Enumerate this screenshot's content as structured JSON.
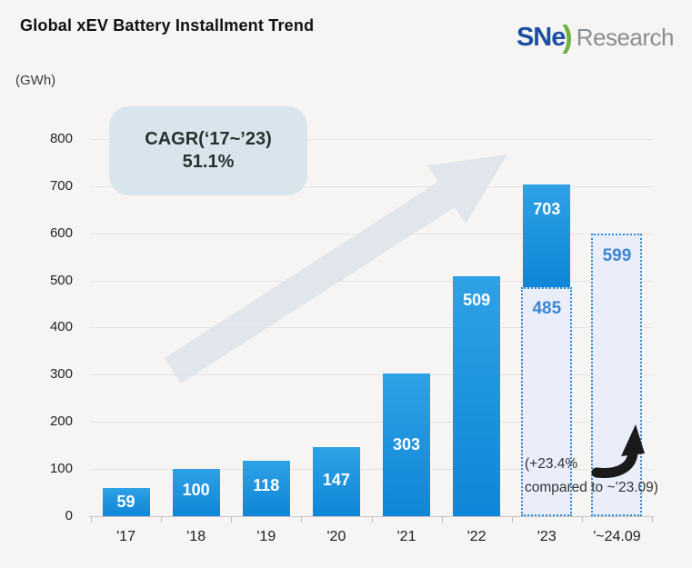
{
  "header": {
    "title": "Global xEV Battery Installment Trend",
    "logo": {
      "sn": "SN",
      "e": "e",
      "paren": ")",
      "research": "Research"
    }
  },
  "axis_unit_label": "(GWh)",
  "cagr_box": {
    "line1": "CAGR(‘17~’23)",
    "line2": "51.1%"
  },
  "note": {
    "line1": "(+23.4%",
    "line2": "compared to ~’23.09)"
  },
  "colors": {
    "background": "#f6f5f3",
    "bar_blue_top": "#2ea1e6",
    "bar_blue_bottom": "#0f86d7",
    "dotted_border_blue": "#2f8ad9",
    "dotted_fill": "#e9eefa",
    "dotted_value_text": "#3e86d1",
    "value_text": "#ffffff",
    "gridline": "#e6e4e2",
    "cagr_box_fill": "#d5e3ea",
    "logo_blue": "#1c4fa1",
    "logo_green": "#6db33f",
    "logo_gray": "#8b8e90",
    "trend_arrow_fill": "#dbe2e9"
  },
  "chart_data": {
    "type": "bar",
    "title": "Global xEV Battery Installment Trend",
    "ylabel": "(GWh)",
    "xlabel": "",
    "ylim": [
      0,
      800
    ],
    "ytick_interval": 100,
    "yticks": [
      0,
      100,
      200,
      300,
      400,
      500,
      600,
      700,
      800
    ],
    "grid": true,
    "categories": [
      "'17",
      "'18",
      "'19",
      "'20",
      "'21",
      "'22",
      "'23",
      "'~24.09"
    ],
    "values": [
      59,
      100,
      118,
      147,
      303,
      509,
      703,
      599
    ],
    "bars": [
      {
        "category": "'17",
        "value": 59,
        "style": "solid"
      },
      {
        "category": "'18",
        "value": 100,
        "style": "solid"
      },
      {
        "category": "'19",
        "value": 118,
        "style": "solid"
      },
      {
        "category": "'20",
        "value": 147,
        "style": "solid"
      },
      {
        "category": "'21",
        "value": 303,
        "style": "solid"
      },
      {
        "category": "'22",
        "value": 509,
        "style": "solid"
      },
      {
        "category": "'23",
        "value": 703,
        "style": "solid",
        "overlay_value": 485,
        "overlay_style": "dotted-estimate"
      },
      {
        "category": "'~24.09",
        "value": 599,
        "style": "dotted-estimate"
      }
    ],
    "annotations": [
      {
        "text": "CAGR(‘17~’23) 51.1%",
        "kind": "callout-box"
      },
      {
        "text": "(+23.4% compared to ~’23.09)",
        "kind": "note"
      }
    ]
  }
}
